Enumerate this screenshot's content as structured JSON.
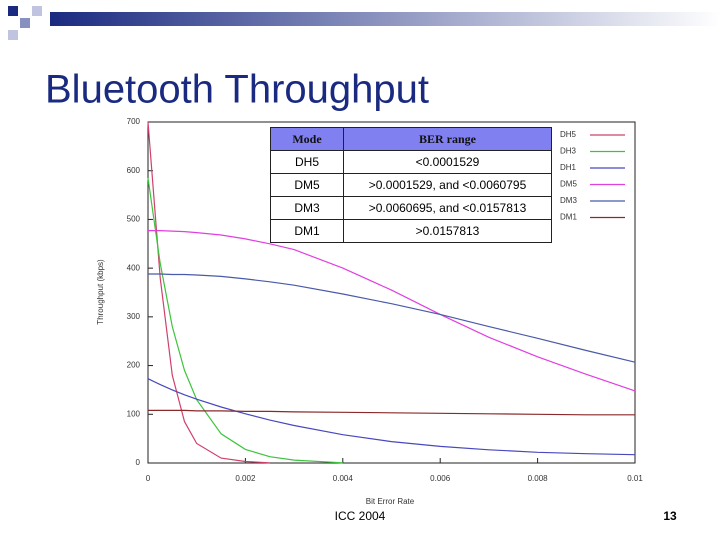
{
  "slide": {
    "title": "Bluetooth Throughput",
    "footer": "ICC 2004",
    "page": "13"
  },
  "chart_data": {
    "type": "line",
    "x_label": "Bit Error Rate",
    "y_label": "Throughput (kbps)",
    "x": [
      0,
      0.00025,
      0.0005,
      0.00075,
      0.001,
      0.0015,
      0.002,
      0.0025,
      0.003,
      0.004,
      0.005,
      0.006,
      0.007,
      0.008,
      0.009,
      0.01
    ],
    "series": [
      {
        "name": "DH5",
        "color": "#d0406a",
        "values": [
          700,
          380,
          180,
          85,
          40,
          10,
          3,
          0.5,
          null,
          null,
          null,
          null,
          null,
          null,
          null,
          null
        ]
      },
      {
        "name": "DH3",
        "color": "#3cc43c",
        "values": [
          585,
          410,
          280,
          190,
          130,
          60,
          28,
          13,
          6,
          0.5,
          null,
          null,
          null,
          null,
          null,
          null
        ]
      },
      {
        "name": "DH1",
        "color": "#4848c0",
        "values": [
          173,
          161,
          150,
          140,
          131,
          115,
          101,
          88,
          77,
          58,
          44,
          34,
          27,
          22,
          19,
          17
        ]
      },
      {
        "name": "DM5",
        "color": "#e040e0",
        "values": [
          477,
          477,
          476,
          475,
          473,
          468,
          460,
          450,
          438,
          400,
          355,
          305,
          258,
          218,
          182,
          148
        ]
      },
      {
        "name": "DM3",
        "color": "#4a5aa8",
        "values": [
          388,
          388,
          387,
          387,
          386,
          383,
          378,
          372,
          365,
          347,
          327,
          305,
          280,
          256,
          231,
          207
        ]
      },
      {
        "name": "DM1",
        "color": "#8a2a2a",
        "values": [
          108,
          108,
          108,
          108,
          107,
          107,
          106,
          106,
          105,
          104,
          103,
          102,
          101,
          100,
          99,
          99
        ]
      }
    ],
    "xlim": [
      0,
      0.01
    ],
    "xticks": [
      0,
      0.002,
      0.004,
      0.006,
      0.008,
      0.01
    ],
    "ylim": [
      0,
      700
    ],
    "yticks": [
      0,
      100,
      200,
      300,
      400,
      500,
      600,
      700
    ],
    "legend": "top-right",
    "table": {
      "header": [
        "Mode",
        "BER range"
      ],
      "rows": [
        [
          "DH5",
          "<0.0001529"
        ],
        [
          "DM5",
          ">0.0001529, and <0.0060795"
        ],
        [
          "DM3",
          ">0.0060695, and <0.0157813"
        ],
        [
          "DM1",
          ">0.0157813"
        ]
      ]
    }
  }
}
